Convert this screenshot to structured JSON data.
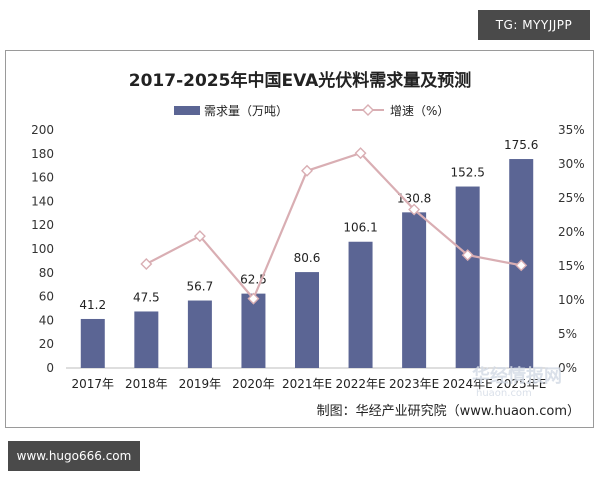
{
  "header": {
    "tag": "TG: MYYJJPP"
  },
  "footer": {
    "url": "www.hugo666.com"
  },
  "chart_data": {
    "type": "bar",
    "title": "2017-2025年中国EVA光伏料需求量及预测",
    "categories": [
      "2017年",
      "2018年",
      "2019年",
      "2020年",
      "2021年E",
      "2022年E",
      "2023年E",
      "2024年E",
      "2025年E"
    ],
    "series": [
      {
        "name": "需求量（万吨）",
        "type": "bar",
        "axis": "left",
        "values": [
          41.2,
          47.5,
          56.7,
          62.5,
          80.6,
          106.1,
          130.8,
          152.5,
          175.6
        ]
      },
      {
        "name": "增速（%）",
        "type": "line",
        "axis": "right",
        "values": [
          null,
          15.3,
          19.4,
          10.2,
          29.0,
          31.6,
          23.3,
          16.6,
          15.1
        ]
      }
    ],
    "y_left": {
      "min": 0,
      "max": 200,
      "ticks": [
        "0",
        "20",
        "40",
        "60",
        "80",
        "100",
        "120",
        "140",
        "160",
        "180",
        "200"
      ]
    },
    "y_right": {
      "min": 0,
      "max": 35,
      "ticks": [
        "0%",
        "5%",
        "10%",
        "15%",
        "20%",
        "25%",
        "30%",
        "35%"
      ]
    },
    "legend_position": "top",
    "source": "制图：华经产业研究院（www.huaon.com）",
    "watermark": "华经情报网 huaon.com",
    "colors": {
      "bar": "#5b6594",
      "line": "#d9aeb3",
      "marker_fill": "#ffffff",
      "frame": "#9a9a9a"
    }
  }
}
